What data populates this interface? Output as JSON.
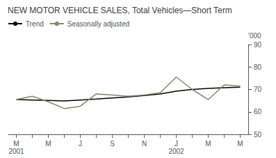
{
  "chart_data": {
    "type": "line",
    "title": "NEW MOTOR VEHICLE SALES, Total Vehicles—Short Term",
    "ylabel": "'000",
    "categories": [
      "M\n2001",
      null,
      "M",
      null,
      "J",
      null,
      "S",
      null,
      "N",
      null,
      "J\n2002",
      null,
      "M",
      null,
      "M"
    ],
    "series": [
      {
        "name": "Trend",
        "color": "#000000",
        "values": [
          65.5,
          65.3,
          65.1,
          64.9,
          65.3,
          65.7,
          66.2,
          66.7,
          67.3,
          68.0,
          69.2,
          70.0,
          70.5,
          70.8,
          71.0
        ]
      },
      {
        "name": "Seasonally adjusted",
        "color": "#8B8060",
        "values": [
          65.5,
          67.0,
          64.5,
          61.5,
          62.5,
          68.0,
          67.5,
          67.0,
          67.5,
          68.5,
          75.5,
          70.0,
          65.5,
          72.0,
          71.5
        ]
      }
    ],
    "ylim": [
      50,
      90
    ],
    "yticks": [
      50,
      60,
      70,
      80,
      90
    ],
    "grid": false,
    "legend": "upper left"
  }
}
